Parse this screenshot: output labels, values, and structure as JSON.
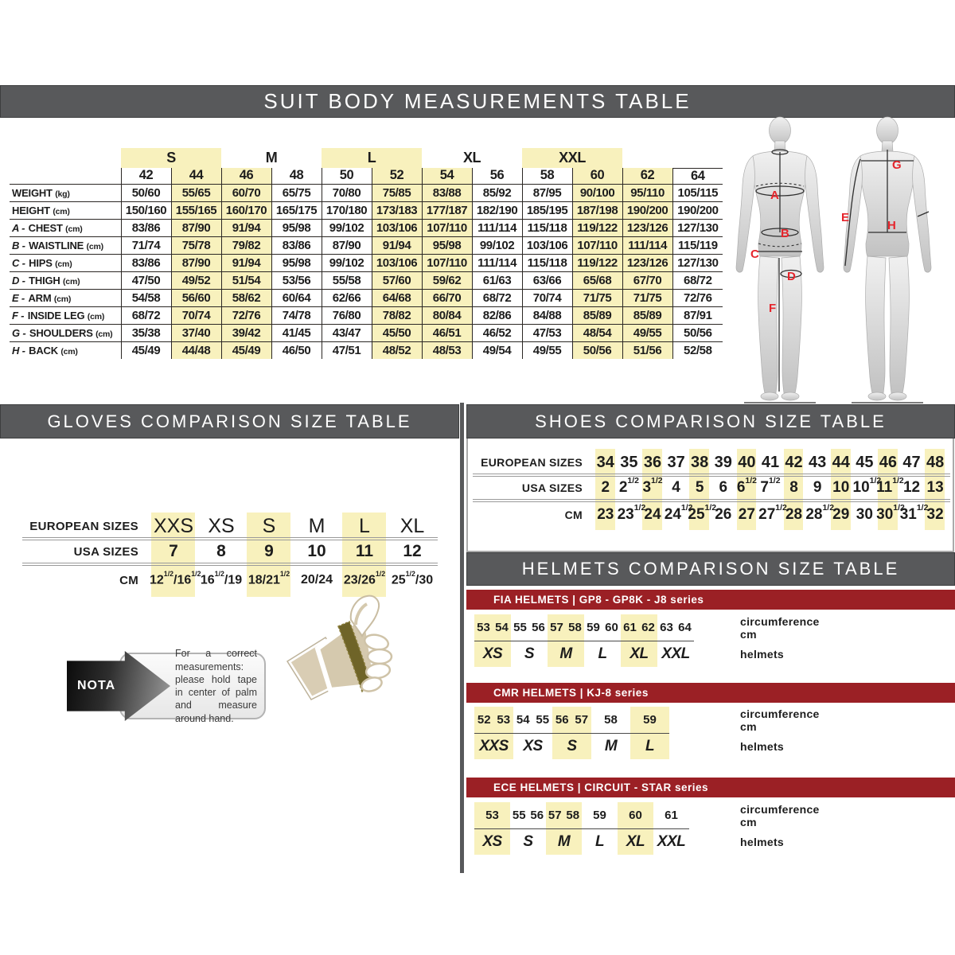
{
  "colors": {
    "bar_gray": "#58595b",
    "accent_red": "#9b2025",
    "highlight_yellow": "#f8f1bd",
    "letter_red": "#e5252c"
  },
  "suit_section": {
    "title": "SUIT BODY MEASUREMENTS TABLE",
    "size_groups": [
      {
        "label": "",
        "span": 1
      },
      {
        "label": "S",
        "span": 2,
        "highlight": true
      },
      {
        "label": "M",
        "span": 2
      },
      {
        "label": "L",
        "span": 2,
        "highlight": true
      },
      {
        "label": "XL",
        "span": 2
      },
      {
        "label": "XXL",
        "span": 2,
        "highlight": true
      },
      {
        "label": "",
        "span": 1
      }
    ],
    "sizes": [
      "42",
      "44",
      "46",
      "48",
      "50",
      "52",
      "54",
      "56",
      "58",
      "60",
      "62",
      "64"
    ],
    "highlight_columns": [
      1,
      2,
      5,
      6,
      9,
      10
    ],
    "rows": [
      {
        "prefix": "",
        "label": "WEIGHT",
        "unit": "(kg)",
        "values": [
          "50/60",
          "55/65",
          "60/70",
          "65/75",
          "70/80",
          "75/85",
          "83/88",
          "85/92",
          "87/95",
          "90/100",
          "95/110",
          "105/115"
        ]
      },
      {
        "prefix": "",
        "label": "HEIGHT",
        "unit": "(cm)",
        "values": [
          "150/160",
          "155/165",
          "160/170",
          "165/175",
          "170/180",
          "173/183",
          "177/187",
          "182/190",
          "185/195",
          "187/198",
          "190/200",
          "190/200"
        ]
      },
      {
        "prefix": "A",
        "label": "CHEST",
        "unit": "(cm)",
        "values": [
          "83/86",
          "87/90",
          "91/94",
          "95/98",
          "99/102",
          "103/106",
          "107/110",
          "111/114",
          "115/118",
          "119/122",
          "123/126",
          "127/130"
        ]
      },
      {
        "prefix": "B",
        "label": "WAISTLINE",
        "unit": "(cm)",
        "values": [
          "71/74",
          "75/78",
          "79/82",
          "83/86",
          "87/90",
          "91/94",
          "95/98",
          "99/102",
          "103/106",
          "107/110",
          "111/114",
          "115/119"
        ]
      },
      {
        "prefix": "C",
        "label": "HIPS",
        "unit": "(cm)",
        "values": [
          "83/86",
          "87/90",
          "91/94",
          "95/98",
          "99/102",
          "103/106",
          "107/110",
          "111/114",
          "115/118",
          "119/122",
          "123/126",
          "127/130"
        ]
      },
      {
        "prefix": "D",
        "label": "THIGH",
        "unit": "(cm)",
        "values": [
          "47/50",
          "49/52",
          "51/54",
          "53/56",
          "55/58",
          "57/60",
          "59/62",
          "61/63",
          "63/66",
          "65/68",
          "67/70",
          "68/72"
        ]
      },
      {
        "prefix": "E",
        "label": "ARM",
        "unit": "(cm)",
        "values": [
          "54/58",
          "56/60",
          "58/62",
          "60/64",
          "62/66",
          "64/68",
          "66/70",
          "68/72",
          "70/74",
          "71/75",
          "71/75",
          "72/76"
        ]
      },
      {
        "prefix": "F",
        "label": "INSIDE LEG",
        "unit": "(cm)",
        "values": [
          "68/72",
          "70/74",
          "72/76",
          "74/78",
          "76/80",
          "78/82",
          "80/84",
          "82/86",
          "84/88",
          "85/89",
          "85/89",
          "87/91"
        ]
      },
      {
        "prefix": "G",
        "label": "SHOULDERS",
        "unit": "(cm)",
        "values": [
          "35/38",
          "37/40",
          "39/42",
          "41/45",
          "43/47",
          "45/50",
          "46/51",
          "46/52",
          "47/53",
          "48/54",
          "49/55",
          "50/56"
        ]
      },
      {
        "prefix": "H",
        "label": "BACK",
        "unit": "(cm)",
        "values": [
          "45/49",
          "44/48",
          "45/49",
          "46/50",
          "47/51",
          "48/52",
          "48/53",
          "49/54",
          "49/55",
          "50/56",
          "51/56",
          "52/58"
        ]
      }
    ],
    "figure_letters": [
      "A",
      "B",
      "C",
      "D",
      "E",
      "F",
      "G",
      "H"
    ]
  },
  "gloves_section": {
    "title": "GLOVES COMPARISON SIZE TABLE",
    "highlight_columns": [
      0,
      2,
      4
    ],
    "rows": [
      {
        "label": "EUROPEAN SIZES",
        "values": [
          "XXS",
          "XS",
          "S",
          "M",
          "L",
          "XL"
        ]
      },
      {
        "label": "USA SIZES",
        "values": [
          "7",
          "8",
          "9",
          "10",
          "11",
          "12"
        ]
      },
      {
        "label": "CM",
        "values": [
          "12½/16½",
          "16½/19",
          "18/21½",
          "20/24",
          "23/26½",
          "25½/30"
        ]
      }
    ],
    "nota": {
      "label": "NOTA",
      "text": "For a correct measurements: please hold tape in center of palm and measure around hand."
    }
  },
  "shoes_section": {
    "title": "SHOES COMPARISON SIZE TABLE",
    "highlight_columns": [
      0,
      2,
      4,
      6,
      8,
      10,
      12,
      14
    ],
    "rows": [
      {
        "label": "EUROPEAN SIZES",
        "values": [
          "34",
          "35",
          "36",
          "37",
          "38",
          "39",
          "40",
          "41",
          "42",
          "43",
          "44",
          "45",
          "46",
          "47",
          "48"
        ]
      },
      {
        "label": "USA SIZES",
        "values": [
          "2",
          "2½",
          "3½",
          "4",
          "5",
          "6",
          "6½",
          "7½",
          "8",
          "9",
          "10",
          "10½",
          "11½",
          "12",
          "13"
        ]
      },
      {
        "label": "CM",
        "values": [
          "23",
          "23½",
          "24",
          "24½",
          "25½",
          "26",
          "27",
          "27½",
          "28",
          "28½",
          "29",
          "30",
          "30½",
          "31½",
          "32"
        ]
      }
    ]
  },
  "helmets_section": {
    "title": "HELMETS COMPARISON SIZE TABLE",
    "col_labels": {
      "circumference": "circumference cm",
      "helmets": "helmets"
    },
    "tables": [
      {
        "series": "FIA HELMETS  |  GP8 - GP8K - J8 series",
        "groups": [
          {
            "sizes": [
              "53",
              "54"
            ],
            "letter": "XS",
            "highlight": true
          },
          {
            "sizes": [
              "55",
              "56"
            ],
            "letter": "S"
          },
          {
            "sizes": [
              "57",
              "58"
            ],
            "letter": "M",
            "highlight": true
          },
          {
            "sizes": [
              "59",
              "60"
            ],
            "letter": "L"
          },
          {
            "sizes": [
              "61",
              "62"
            ],
            "letter": "XL",
            "highlight": true
          },
          {
            "sizes": [
              "63",
              "64"
            ],
            "letter": "XXL"
          }
        ]
      },
      {
        "series": "CMR HELMETS  |  KJ-8 series",
        "groups": [
          {
            "sizes": [
              "52",
              "53"
            ],
            "letter": "XXS",
            "highlight": true
          },
          {
            "sizes": [
              "54",
              "55"
            ],
            "letter": "XS"
          },
          {
            "sizes": [
              "56",
              "57"
            ],
            "letter": "S",
            "highlight": true
          },
          {
            "sizes": [
              "58"
            ],
            "letter": "M"
          },
          {
            "sizes": [
              "59"
            ],
            "letter": "L",
            "highlight": true
          }
        ]
      },
      {
        "series": "ECE HELMETS  |  CIRCUIT - STAR series",
        "groups": [
          {
            "sizes": [
              "53"
            ],
            "letter": "XS",
            "highlight": true
          },
          {
            "sizes": [
              "55",
              "56"
            ],
            "letter": "S"
          },
          {
            "sizes": [
              "57",
              "58"
            ],
            "letter": "M",
            "highlight": true
          },
          {
            "sizes": [
              "59"
            ],
            "letter": "L"
          },
          {
            "sizes": [
              "60"
            ],
            "letter": "XL",
            "highlight": true
          },
          {
            "sizes": [
              "61"
            ],
            "letter": "XXL"
          }
        ]
      }
    ]
  }
}
